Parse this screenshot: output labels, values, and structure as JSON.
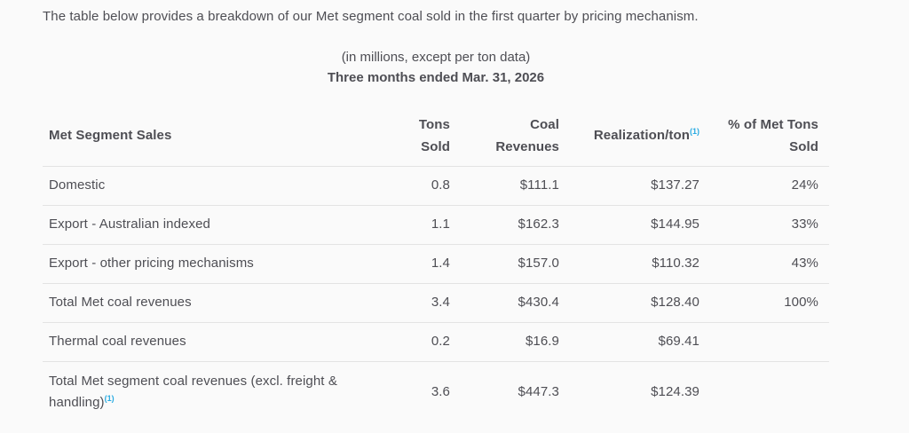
{
  "intro": "The table below provides a breakdown of our Met segment coal sold in the first quarter by pricing mechanism.",
  "units_note": "(in millions, except per ton data)",
  "period": "Three months ended Mar. 31, 2026",
  "colors": {
    "accent_cyan": "#29abe2",
    "text": "#4e4e54",
    "divider": "#e3e3e3",
    "background": "#fafafa"
  },
  "table": {
    "columns": [
      {
        "id": "label",
        "lines": [
          "Met Segment Sales"
        ],
        "sup": null
      },
      {
        "id": "tons",
        "lines": [
          "Tons",
          "Sold"
        ],
        "sup": null
      },
      {
        "id": "coal",
        "lines": [
          "Coal",
          "Revenues"
        ],
        "sup": null
      },
      {
        "id": "realization",
        "lines": [
          "Realization/ton"
        ],
        "sup": "(1)"
      },
      {
        "id": "pct",
        "lines": [
          "% of Met Tons",
          "Sold"
        ],
        "sup": null
      }
    ],
    "rows": [
      {
        "label": "Domestic",
        "label_sup": null,
        "tons": "0.8",
        "coal": "$111.1",
        "realization": "$137.27",
        "pct": "24%"
      },
      {
        "label": "Export - Australian indexed",
        "label_sup": null,
        "tons": "1.1",
        "coal": "$162.3",
        "realization": "$144.95",
        "pct": "33%"
      },
      {
        "label": "Export - other pricing mechanisms",
        "label_sup": null,
        "tons": "1.4",
        "coal": "$157.0",
        "realization": "$110.32",
        "pct": "43%"
      },
      {
        "label": "Total Met coal revenues",
        "label_sup": null,
        "tons": "3.4",
        "coal": "$430.4",
        "realization": "$128.40",
        "pct": "100%"
      },
      {
        "label": "Thermal coal revenues",
        "label_sup": null,
        "tons": "0.2",
        "coal": "$16.9",
        "realization": "$69.41",
        "pct": ""
      },
      {
        "label": "Total Met segment coal revenues (excl. freight & handling)",
        "label_sup": "(1)",
        "tons": "3.6",
        "coal": "$447.3",
        "realization": "$124.39",
        "pct": ""
      }
    ]
  }
}
